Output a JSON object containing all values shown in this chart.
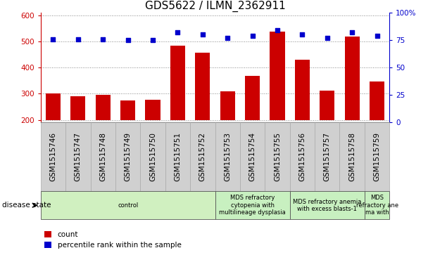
{
  "title": "GDS5622 / ILMN_2362911",
  "samples": [
    "GSM1515746",
    "GSM1515747",
    "GSM1515748",
    "GSM1515749",
    "GSM1515750",
    "GSM1515751",
    "GSM1515752",
    "GSM1515753",
    "GSM1515754",
    "GSM1515755",
    "GSM1515756",
    "GSM1515757",
    "GSM1515758",
    "GSM1515759"
  ],
  "counts": [
    302,
    291,
    295,
    275,
    276,
    483,
    456,
    310,
    369,
    537,
    429,
    311,
    519,
    348
  ],
  "percentile_ranks": [
    76,
    76,
    76,
    75,
    75,
    82,
    80,
    77,
    79,
    84,
    80,
    77,
    82,
    79
  ],
  "bar_color": "#cc0000",
  "dot_color": "#0000cc",
  "ylim_left": [
    190,
    610
  ],
  "ylim_right": [
    0,
    100
  ],
  "yticks_left": [
    200,
    300,
    400,
    500,
    600
  ],
  "yticks_right": [
    0,
    25,
    50,
    75,
    100
  ],
  "yright_labels": [
    "0",
    "25",
    "50",
    "75",
    "100%"
  ],
  "disease_groups": [
    {
      "label": "control",
      "start": 0,
      "end": 7,
      "color": "#d0f0c0"
    },
    {
      "label": "MDS refractory\ncytopenia with\nmultilineage dysplasia",
      "start": 7,
      "end": 10,
      "color": "#c8f0c0"
    },
    {
      "label": "MDS refractory anemia\nwith excess blasts-1",
      "start": 10,
      "end": 13,
      "color": "#c8f0c0"
    },
    {
      "label": "MDS\nrefractory ane\nma with",
      "start": 13,
      "end": 14,
      "color": "#c8f0c0"
    }
  ],
  "disease_state_label": "disease state",
  "grid_color": "#888888",
  "background_color": "#ffffff",
  "tick_label_fontsize": 7.5,
  "title_fontsize": 11,
  "bar_bottom": 200,
  "sample_box_color": "#d0d0d0",
  "n_samples": 14
}
